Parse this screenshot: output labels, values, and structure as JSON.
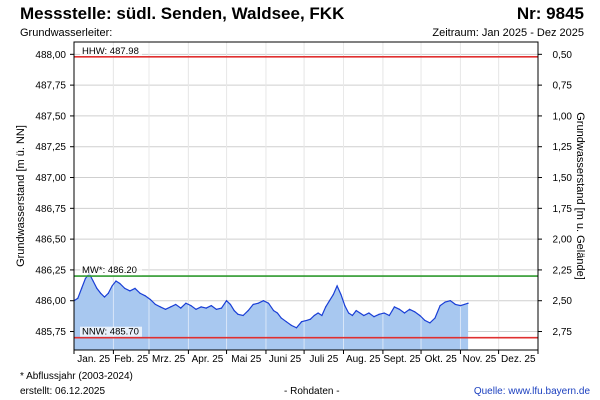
{
  "header": {
    "station": "Messstelle: südl. Senden, Waldsee, FKK",
    "number": "Nr: 9845",
    "aquifer": "Grundwasserleiter:",
    "period": "Zeitraum: Jan 2025 - Dez 2025"
  },
  "footer": {
    "note": "* Abflussjahr (2003-2024)",
    "created": "erstellt:  06.12.2025",
    "rawdata": "- Rohdaten -",
    "source": "Quelle: www.lfu.bayern.de"
  },
  "colors": {
    "area_fill": "#a8c8f0",
    "line": "#1a3fd6",
    "hhw": "#e03030",
    "nnw": "#e03030",
    "mw": "#2e9a2e",
    "grid": "#cfcfcf"
  },
  "chart_data": {
    "type": "area",
    "grid": true,
    "xlabel": "",
    "ylabel": "Grundwasserstand [m ü. NN]",
    "y2label": "Grundwasserstand [m u. Gelände]",
    "ylim": [
      485.6,
      488.1
    ],
    "yticks": [
      "488,00",
      "487,75",
      "487,50",
      "487,25",
      "487,00",
      "486,75",
      "486,50",
      "486,25",
      "486,00",
      "485,75"
    ],
    "y2ticks": [
      "0,50",
      "0,75",
      "1,00",
      "1,25",
      "1,50",
      "1,75",
      "2,00",
      "2,25",
      "2,50",
      "2,75"
    ],
    "xticks": [
      "Jan. 25",
      "Feb. 25",
      "Mrz. 25",
      "Apr. 25",
      "Mai 25",
      "Juni 25",
      "Juli 25",
      "Aug. 25",
      "Sept. 25",
      "Okt. 25",
      "Nov. 25",
      "Dez. 25"
    ],
    "reference_lines": [
      {
        "label": "HHW: 487.98",
        "value": 487.98
      },
      {
        "label": "MW*: 486.20",
        "value": 486.2
      },
      {
        "label": "NNW: 485.70",
        "value": 485.7
      }
    ],
    "series": [
      {
        "x": [
          "2025-01-01",
          "2025-01-04",
          "2025-01-07",
          "2025-01-10",
          "2025-01-13",
          "2025-01-16",
          "2025-01-19",
          "2025-01-22",
          "2025-01-25",
          "2025-01-28",
          "2025-01-31",
          "2025-02-03",
          "2025-02-06",
          "2025-02-10",
          "2025-02-14",
          "2025-02-18",
          "2025-02-22",
          "2025-02-26",
          "2025-03-02",
          "2025-03-06",
          "2025-03-10",
          "2025-03-14",
          "2025-03-18",
          "2025-03-22",
          "2025-03-26",
          "2025-03-30",
          "2025-04-03",
          "2025-04-07",
          "2025-04-11",
          "2025-04-15",
          "2025-04-19",
          "2025-04-23",
          "2025-04-27",
          "2025-05-01",
          "2025-05-04",
          "2025-05-07",
          "2025-05-10",
          "2025-05-14",
          "2025-05-18",
          "2025-05-22",
          "2025-05-26",
          "2025-05-30",
          "2025-06-03",
          "2025-06-07",
          "2025-06-10",
          "2025-06-13",
          "2025-06-17",
          "2025-06-21",
          "2025-06-25",
          "2025-06-29",
          "2025-07-03",
          "2025-07-06",
          "2025-07-09",
          "2025-07-12",
          "2025-07-15",
          "2025-07-18",
          "2025-07-21",
          "2025-07-24",
          "2025-07-27",
          "2025-07-30",
          "2025-08-02",
          "2025-08-05",
          "2025-08-08",
          "2025-08-11",
          "2025-08-14",
          "2025-08-17",
          "2025-08-21",
          "2025-08-25",
          "2025-08-29",
          "2025-09-02",
          "2025-09-06",
          "2025-09-10",
          "2025-09-14",
          "2025-09-18",
          "2025-09-22",
          "2025-09-26",
          "2025-09-30",
          "2025-10-04",
          "2025-10-08",
          "2025-10-12",
          "2025-10-16",
          "2025-10-20",
          "2025-10-24",
          "2025-10-28",
          "2025-11-01",
          "2025-11-04",
          "2025-11-07"
        ],
        "values": [
          486.0,
          486.02,
          486.1,
          486.18,
          486.22,
          486.16,
          486.1,
          486.06,
          486.03,
          486.06,
          486.12,
          486.16,
          486.14,
          486.1,
          486.08,
          486.1,
          486.06,
          486.04,
          486.01,
          485.97,
          485.95,
          485.93,
          485.95,
          485.97,
          485.94,
          485.98,
          485.96,
          485.93,
          485.95,
          485.94,
          485.96,
          485.93,
          485.94,
          486.0,
          485.97,
          485.92,
          485.89,
          485.88,
          485.92,
          485.97,
          485.98,
          486.0,
          485.98,
          485.92,
          485.9,
          485.86,
          485.83,
          485.8,
          485.78,
          485.83,
          485.84,
          485.85,
          485.88,
          485.9,
          485.88,
          485.95,
          486.0,
          486.05,
          486.12,
          486.05,
          485.96,
          485.9,
          485.88,
          485.92,
          485.9,
          485.88,
          485.9,
          485.87,
          485.89,
          485.9,
          485.88,
          485.95,
          485.93,
          485.9,
          485.93,
          485.91,
          485.88,
          485.84,
          485.82,
          485.86,
          485.96,
          485.99,
          486.0,
          485.97,
          485.96,
          485.97,
          485.98
        ]
      }
    ]
  }
}
